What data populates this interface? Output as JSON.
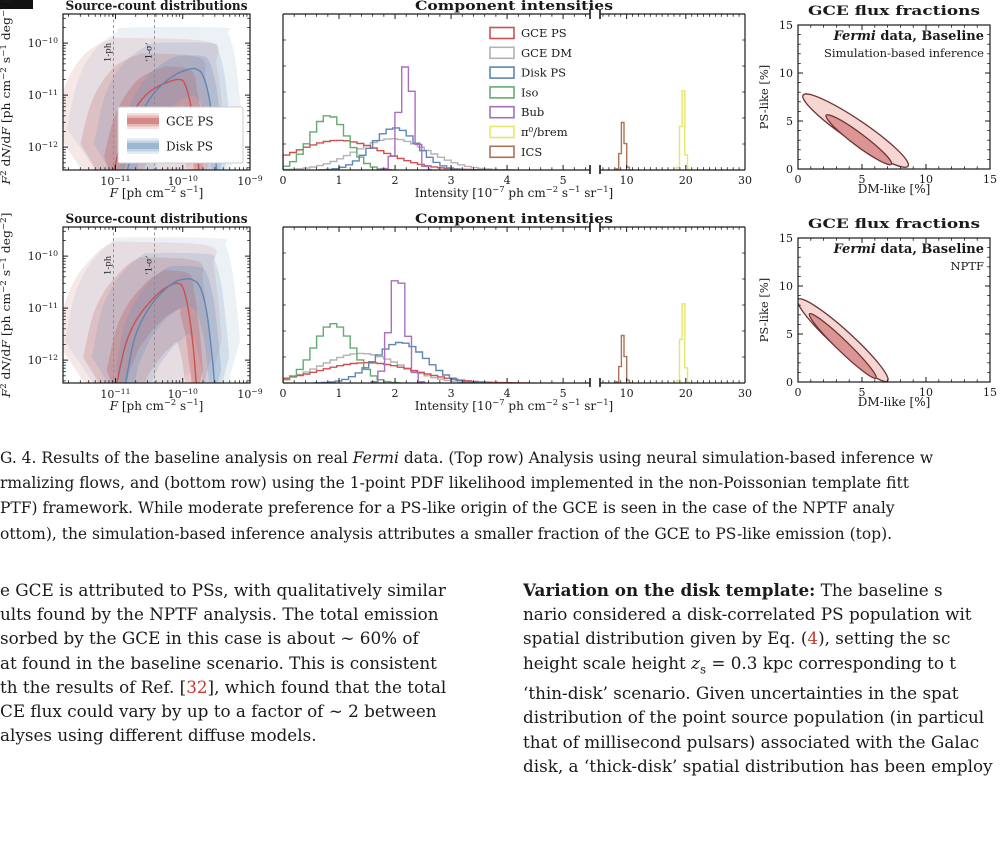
{
  "palette": {
    "gce_ps": "#cc5151",
    "gce_dm": "#b3b3b3",
    "disk_ps": "#5f86b5",
    "iso": "#63ab70",
    "bub": "#a76fc0",
    "pi0_brem": "#e6e66a",
    "ics": "#ad7257",
    "band_red": "#c0504f",
    "band_blue": "#6d94bd",
    "contour_edge": "#6e3434",
    "contour_fill_outer": "#f5d6d3",
    "contour_fill_inner": "#dc9494",
    "dashed_line": "#8c8c8c",
    "gray_text": "#8a8a8a",
    "ref_red": "#c43b2a",
    "axis": "#1a1a1a"
  },
  "chart_data": {
    "labels": {
      "sc_title": "Source-count distributions",
      "sc_xlabel": [
        {
          "t": "F",
          "s": "i"
        },
        {
          "t": " [ph cm"
        },
        {
          "t": "−2",
          "s": "sup"
        },
        {
          "t": " s"
        },
        {
          "t": "−1",
          "s": "sup"
        },
        {
          "t": "]"
        }
      ],
      "sc_ylabel": [
        {
          "t": "F",
          "s": "i"
        },
        {
          "t": "2",
          "s": "sup"
        },
        {
          "t": " d"
        },
        {
          "t": "N",
          "s": "i"
        },
        {
          "t": "/d"
        },
        {
          "t": "F",
          "s": "i"
        },
        {
          "t": " [ph cm"
        },
        {
          "t": "−2",
          "s": "sup"
        },
        {
          "t": " s"
        },
        {
          "t": "−1",
          "s": "sup"
        },
        {
          "t": " deg"
        },
        {
          "t": "−2",
          "s": "sup"
        },
        {
          "t": "]"
        }
      ],
      "int_title": "Component intensities",
      "int_xlabel": [
        {
          "t": "Intensity [10"
        },
        {
          "t": "−7",
          "s": "sup"
        },
        {
          "t": " ph cm"
        },
        {
          "t": "−2",
          "s": "sup"
        },
        {
          "t": " s"
        },
        {
          "t": "−1",
          "s": "sup"
        },
        {
          "t": " sr"
        },
        {
          "t": "−1",
          "s": "sup"
        },
        {
          "t": "]"
        }
      ],
      "flux_title": "GCE flux fractions",
      "flux_xlabel": "DM-like [%]",
      "flux_ylabel": "PS-like [%]",
      "vline1_label": "1-ph",
      "vline2_label": "‘1-σ’"
    },
    "source_count": {
      "x_log_range": [
        -11.78,
        -9.0
      ],
      "y_log_range": [
        -12.44,
        -9.44
      ],
      "x_ticks_exp": [
        -11,
        -10,
        -9
      ],
      "y_ticks_exp": [
        -10,
        -11,
        -12
      ],
      "vlines_logF": [
        -11.03,
        -10.42
      ],
      "legend_entries": [
        "GCE PS",
        "Disk PS"
      ],
      "top": {
        "gce_ps_median": [
          [
            -11.02,
            -12.44
          ],
          [
            -10.9,
            -11.8
          ],
          [
            -10.75,
            -11.35
          ],
          [
            -10.55,
            -11.0
          ],
          [
            -10.35,
            -10.82
          ],
          [
            -10.15,
            -10.72
          ],
          [
            -10.05,
            -10.7
          ],
          [
            -9.97,
            -10.78
          ],
          [
            -9.88,
            -11.2
          ],
          [
            -9.8,
            -11.9
          ],
          [
            -9.76,
            -12.44
          ]
        ],
        "disk_ps_median": [
          [
            -10.82,
            -12.44
          ],
          [
            -10.7,
            -11.7
          ],
          [
            -10.55,
            -11.2
          ],
          [
            -10.35,
            -10.85
          ],
          [
            -10.1,
            -10.6
          ],
          [
            -9.9,
            -10.5
          ],
          [
            -9.8,
            -10.5
          ],
          [
            -9.7,
            -10.62
          ],
          [
            -9.6,
            -11.1
          ],
          [
            -9.52,
            -12.0
          ],
          [
            -9.5,
            -12.44
          ]
        ]
      },
      "bottom": {
        "gce_ps_median": [
          [
            -10.98,
            -12.44
          ],
          [
            -10.85,
            -11.7
          ],
          [
            -10.7,
            -11.25
          ],
          [
            -10.5,
            -10.9
          ],
          [
            -10.3,
            -10.65
          ],
          [
            -10.15,
            -10.54
          ],
          [
            -10.08,
            -10.52
          ],
          [
            -10.0,
            -10.6
          ],
          [
            -9.92,
            -11.0
          ],
          [
            -9.84,
            -11.8
          ],
          [
            -9.8,
            -12.44
          ]
        ],
        "disk_ps_median": [
          [
            -10.85,
            -12.44
          ],
          [
            -10.72,
            -11.6
          ],
          [
            -10.55,
            -11.1
          ],
          [
            -10.35,
            -10.75
          ],
          [
            -10.12,
            -10.5
          ],
          [
            -9.95,
            -10.44
          ],
          [
            -9.85,
            -10.46
          ],
          [
            -9.74,
            -10.6
          ],
          [
            -9.64,
            -11.1
          ],
          [
            -9.55,
            -12.1
          ],
          [
            -9.53,
            -12.44
          ]
        ]
      },
      "band_levels": [
        {
          "du": 0.25,
          "dl": 0.5,
          "dxl": 0.15,
          "dxr": 0.1,
          "alpha": 0.28
        },
        {
          "du": 0.5,
          "dl": 1.0,
          "dxl": 0.5,
          "dxr": 0.22,
          "alpha": 0.2
        },
        {
          "du": 0.8,
          "dl": 1.6,
          "dxl": 0.9,
          "dxr": 0.38,
          "alpha": 0.13
        }
      ]
    },
    "intensities": {
      "left_axis": {
        "range": [
          0,
          5.48
        ],
        "ticks": [
          0,
          1,
          2,
          3,
          4,
          5
        ]
      },
      "right_axis": {
        "range": [
          5.5,
          30
        ],
        "ticks": [
          10,
          20,
          30
        ]
      },
      "legend_order": [
        "GCE PS",
        "GCE DM",
        "Disk PS",
        "Iso",
        "Bub",
        "π⁰/brem",
        "ICS"
      ],
      "top_components": [
        {
          "name": "GCE DM",
          "color": "gce_dm",
          "panel": "left",
          "center": 1.95,
          "sigma": 0.65,
          "height": 0.2,
          "bin": 0.12
        },
        {
          "name": "GCE PS",
          "color": "gce_ps",
          "panel": "left",
          "center": 1.0,
          "sigma": 0.8,
          "height": 0.19,
          "bin": 0.12
        },
        {
          "name": "Iso",
          "color": "iso",
          "panel": "left",
          "center": 0.82,
          "sigma": 0.33,
          "height": 0.35,
          "bin": 0.12
        },
        {
          "name": "Disk PS",
          "color": "disk_ps",
          "panel": "left",
          "center": 2.0,
          "sigma": 0.4,
          "height": 0.27,
          "bin": 0.12
        },
        {
          "name": "Bub",
          "color": "bub",
          "panel": "left",
          "center": 2.2,
          "sigma": 0.13,
          "height": 0.67,
          "bin": 0.12
        },
        {
          "name": "ICS",
          "color": "ics",
          "panel": "right",
          "center": 9.4,
          "sigma": 0.35,
          "height": 0.31,
          "bin": 0.45
        },
        {
          "name": "π⁰/brem",
          "color": "pi0_brem",
          "panel": "right",
          "center": 19.5,
          "sigma": 0.3,
          "height": 0.54,
          "bin": 0.45
        }
      ],
      "bottom_components": [
        {
          "name": "GCE DM",
          "color": "gce_dm",
          "panel": "left",
          "center": 1.4,
          "sigma": 0.7,
          "height": 0.19,
          "bin": 0.12
        },
        {
          "name": "GCE PS",
          "color": "gce_ps",
          "panel": "left",
          "center": 1.5,
          "sigma": 0.85,
          "height": 0.13,
          "bin": 0.12
        },
        {
          "name": "Iso",
          "color": "iso",
          "panel": "left",
          "center": 0.9,
          "sigma": 0.35,
          "height": 0.38,
          "bin": 0.12
        },
        {
          "name": "Disk PS",
          "color": "disk_ps",
          "panel": "left",
          "center": 2.1,
          "sigma": 0.45,
          "height": 0.26,
          "bin": 0.12
        },
        {
          "name": "Bub",
          "color": "bub",
          "panel": "left",
          "center": 2.05,
          "sigma": 0.14,
          "height": 0.71,
          "bin": 0.12
        },
        {
          "name": "ICS",
          "color": "ics",
          "panel": "right",
          "center": 9.4,
          "sigma": 0.35,
          "height": 0.31,
          "bin": 0.45
        },
        {
          "name": "π⁰/brem",
          "color": "pi0_brem",
          "panel": "right",
          "center": 19.5,
          "sigma": 0.3,
          "height": 0.54,
          "bin": 0.45
        }
      ]
    },
    "flux_fractions": {
      "xlim": [
        0,
        15
      ],
      "ylim": [
        0,
        15
      ],
      "ticks": [
        0,
        5,
        10,
        15
      ],
      "top": {
        "note_bold": [
          {
            "t": "Fermi",
            "s": "bi"
          },
          {
            "t": " data, Baseline",
            "s": "b"
          }
        ],
        "note_sub": "Simulation-based inference",
        "ellipses": [
          {
            "p1": [
              0.4,
              7.7
            ],
            "p2": [
              8.6,
              0.3
            ],
            "half_width": 0.95,
            "level": "outer"
          },
          {
            "p1": [
              2.2,
              5.6
            ],
            "p2": [
              7.3,
              0.5
            ],
            "half_width": 0.55,
            "level": "inner"
          }
        ]
      },
      "bottom": {
        "note_bold": [
          {
            "t": "Fermi",
            "s": "bi"
          },
          {
            "t": " data, Baseline",
            "s": "b"
          }
        ],
        "note_sub": "NPTF",
        "ellipses": [
          {
            "p1": [
              0.0,
              8.6
            ],
            "p2": [
              7.0,
              0.1
            ],
            "half_width": 0.85,
            "level": "outer"
          },
          {
            "p1": [
              0.9,
              7.1
            ],
            "p2": [
              6.1,
              0.4
            ],
            "half_width": 0.5,
            "level": "inner"
          }
        ]
      }
    }
  },
  "caption": {
    "lines": [
      [
        {
          "t": "G. 4.  Results of the baseline analysis on real "
        },
        {
          "t": "Fermi",
          "s": "i"
        },
        {
          "t": " data.  (Top row) Analysis using neural simulation-based inference w"
        }
      ],
      [
        {
          "t": "rmalizing flows, and (bottom row) using the 1-point PDF likelihood implemented in the non-Poissonian template fitt"
        }
      ],
      [
        {
          "t": "PTF) framework.  While moderate preference for a PS-like origin of the GCE is seen in the case of the NPTF analy"
        }
      ],
      [
        {
          "t": "ottom), the simulation-based inference analysis attributes a smaller fraction of the GCE to PS-like emission (top)."
        }
      ]
    ]
  },
  "body": {
    "left_lines": [
      [
        {
          "t": "e GCE is attributed to PSs, with qualitatively similar"
        }
      ],
      [
        {
          "t": "ults found by the NPTF analysis.  The total emission"
        }
      ],
      [
        {
          "t": "sorbed by the GCE in this case is about ∼ 60% of"
        }
      ],
      [
        {
          "t": "at found in the baseline scenario.  This is consistent"
        }
      ],
      [
        {
          "t": "th the results of Ref. ["
        },
        {
          "t": "32",
          "s": "r"
        },
        {
          "t": "], which found that the total"
        }
      ],
      [
        {
          "t": "CE flux could vary by up to a factor of ∼ 2 between"
        }
      ],
      [
        {
          "t": "alyses using different diffuse models."
        }
      ]
    ],
    "right_lines": [
      [
        {
          "t": "Variation on the disk template:",
          "s": "b"
        },
        {
          "t": "  The baseline s"
        }
      ],
      [
        {
          "t": "nario considered a disk-correlated PS population wit"
        }
      ],
      [
        {
          "t": "spatial distribution given by Eq. ("
        },
        {
          "t": "4",
          "s": "r"
        },
        {
          "t": "), setting the sc"
        }
      ],
      [
        {
          "t": "height scale height "
        },
        {
          "t": "z",
          "s": "i"
        },
        {
          "t": "s",
          "s": "sub"
        },
        {
          "t": " = 0.3 kpc corresponding to t"
        }
      ],
      [
        {
          "t": "‘thin-disk’ scenario.  Given uncertainties in the spat"
        }
      ],
      [
        {
          "t": "distribution of the point source population (in particul"
        }
      ],
      [
        {
          "t": "that of millisecond pulsars) associated with the Galac"
        }
      ],
      [
        {
          "t": "disk, a ‘thick-disk’ spatial distribution has been employ"
        }
      ]
    ]
  }
}
